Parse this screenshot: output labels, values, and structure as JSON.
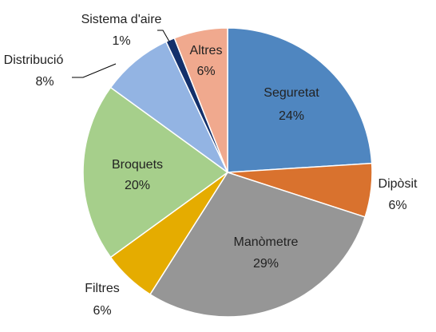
{
  "chart_data": {
    "type": "pie",
    "categories": [
      "Seguretat",
      "Dipòsit",
      "Manòmetre",
      "Filtres",
      "Broquets",
      "Distribució",
      "Sistema d'aire",
      "Altres"
    ],
    "values": [
      24,
      6,
      29,
      6,
      20,
      8,
      1,
      6
    ],
    "value_labels": [
      "24%",
      "6%",
      "29%",
      "6%",
      "20%",
      "8%",
      "1%",
      "6%"
    ],
    "colors": [
      "#4f86c0",
      "#d9722e",
      "#969696",
      "#e5ac00",
      "#a6cf8b",
      "#93b4e3",
      "#13306b",
      "#f0a98e"
    ]
  }
}
